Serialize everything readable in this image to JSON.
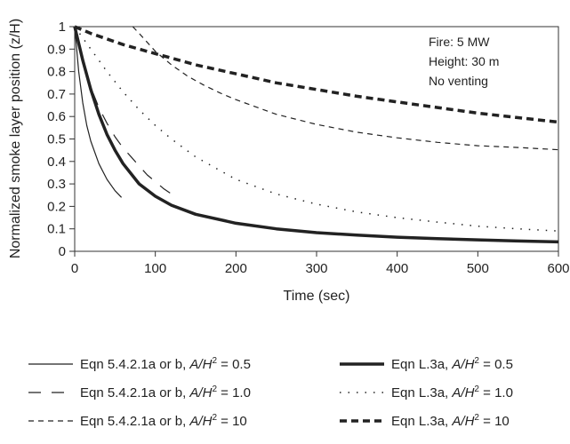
{
  "chart_data": {
    "type": "line",
    "xlabel": "Time (sec)",
    "ylabel": "Normalized smoke layer position (z/H)",
    "xlim": [
      0,
      600
    ],
    "ylim": [
      0,
      1
    ],
    "x_ticks": [
      0,
      100,
      200,
      300,
      400,
      500,
      600
    ],
    "y_ticks": [
      0,
      0.1,
      0.2,
      0.3,
      0.4,
      0.5,
      0.6,
      0.7,
      0.8,
      0.9,
      1
    ],
    "x_tick_labels": [
      "0",
      "100",
      "200",
      "300",
      "400",
      "500",
      "600"
    ],
    "y_tick_labels": [
      "0",
      "0.1",
      "0.2",
      "0.3",
      "0.4",
      "0.5",
      "0.6",
      "0.7",
      "0.8",
      "0.9",
      "1"
    ],
    "grid": false,
    "legend_position": "bottom",
    "annotations": [
      "Fire: 5 MW",
      "Height: 30 m",
      "No venting"
    ],
    "series": [
      {
        "name": "Eqn 5.4.2.1a or b, A/H² = 0.5",
        "style": "thin-solid",
        "x": [
          0,
          5,
          10,
          15,
          20,
          30,
          40,
          50,
          58
        ],
        "y": [
          1.0,
          0.8,
          0.66,
          0.56,
          0.49,
          0.39,
          0.32,
          0.27,
          0.24
        ]
      },
      {
        "name": "Eqn 5.4.2.1a or b, A/H² = 1.0",
        "style": "long-dash",
        "x": [
          0,
          10,
          20,
          30,
          40,
          50,
          60,
          70,
          80,
          90,
          100,
          110,
          120,
          128
        ],
        "y": [
          1.0,
          0.84,
          0.73,
          0.64,
          0.57,
          0.51,
          0.46,
          0.42,
          0.38,
          0.34,
          0.31,
          0.28,
          0.255,
          0.235
        ]
      },
      {
        "name": "Eqn 5.4.2.1a or b, A/H² = 10",
        "style": "thin-dash",
        "x": [
          72,
          80,
          90,
          100,
          120,
          140,
          160,
          180,
          200,
          250,
          300,
          350,
          400,
          450,
          500,
          550,
          600
        ],
        "y": [
          1.0,
          0.97,
          0.93,
          0.89,
          0.83,
          0.78,
          0.74,
          0.705,
          0.675,
          0.61,
          0.565,
          0.53,
          0.505,
          0.485,
          0.47,
          0.462,
          0.452
        ]
      },
      {
        "name": "Eqn L.3a, A/H² = 0.5",
        "style": "thick-solid",
        "x": [
          0,
          10,
          20,
          30,
          40,
          50,
          60,
          80,
          100,
          120,
          150,
          200,
          250,
          300,
          350,
          400,
          450,
          500,
          550,
          600
        ],
        "y": [
          1.0,
          0.85,
          0.72,
          0.61,
          0.52,
          0.45,
          0.39,
          0.3,
          0.245,
          0.205,
          0.165,
          0.125,
          0.1,
          0.083,
          0.072,
          0.063,
          0.056,
          0.051,
          0.046,
          0.042
        ]
      },
      {
        "name": "Eqn L.3a, A/H² = 1.0",
        "style": "dotted",
        "x": [
          0,
          20,
          40,
          60,
          80,
          100,
          120,
          150,
          200,
          250,
          300,
          350,
          400,
          450,
          500,
          550,
          600
        ],
        "y": [
          1.0,
          0.9,
          0.8,
          0.71,
          0.63,
          0.56,
          0.5,
          0.42,
          0.32,
          0.255,
          0.21,
          0.175,
          0.15,
          0.13,
          0.112,
          0.1,
          0.09
        ]
      },
      {
        "name": "Eqn L.3a, A/H² = 10",
        "style": "thick-dash",
        "x": [
          0,
          20,
          40,
          60,
          80,
          100,
          120,
          150,
          200,
          250,
          300,
          350,
          400,
          450,
          500,
          550,
          600
        ],
        "y": [
          1.0,
          0.97,
          0.945,
          0.92,
          0.9,
          0.88,
          0.86,
          0.83,
          0.79,
          0.75,
          0.72,
          0.69,
          0.665,
          0.64,
          0.615,
          0.595,
          0.575
        ]
      }
    ]
  },
  "legend": [
    {
      "prefix": "Eqn 5.4.2.1a or b, ",
      "var": "A/H",
      "sup": "2",
      "suffix": " = 0.5"
    },
    {
      "prefix": "Eqn L.3a, ",
      "var": "A/H",
      "sup": "2",
      "suffix": " = 0.5"
    },
    {
      "prefix": "Eqn 5.4.2.1a or b, ",
      "var": "A/H",
      "sup": "2",
      "suffix": " = 1.0"
    },
    {
      "prefix": "Eqn L.3a, ",
      "var": "A/H",
      "sup": "2",
      "suffix": " = 1.0"
    },
    {
      "prefix": "Eqn 5.4.2.1a or b, ",
      "var": "A/H",
      "sup": "2",
      "suffix": " = 10"
    },
    {
      "prefix": "Eqn L.3a, ",
      "var": "A/H",
      "sup": "2",
      "suffix": " = 10"
    }
  ]
}
